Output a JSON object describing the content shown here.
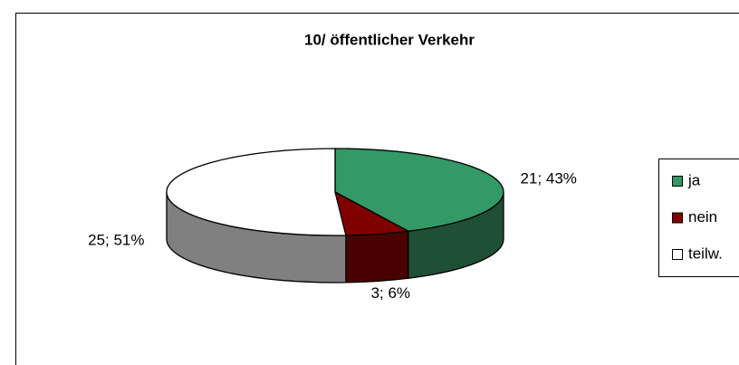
{
  "chart_data": {
    "type": "pie",
    "title": "10/ öffentlicher Verkehr",
    "categories": [
      "ja",
      "nein",
      "teilw."
    ],
    "values": [
      21,
      3,
      25
    ],
    "value_labels": [
      "21; 43%",
      "3; 6%",
      "25; 51%"
    ],
    "colors": [
      "#339966",
      "#800000",
      "#ffffff"
    ],
    "side_colors": [
      "#1f4f35",
      "#4a0000",
      "#808080"
    ],
    "legend": "right"
  }
}
